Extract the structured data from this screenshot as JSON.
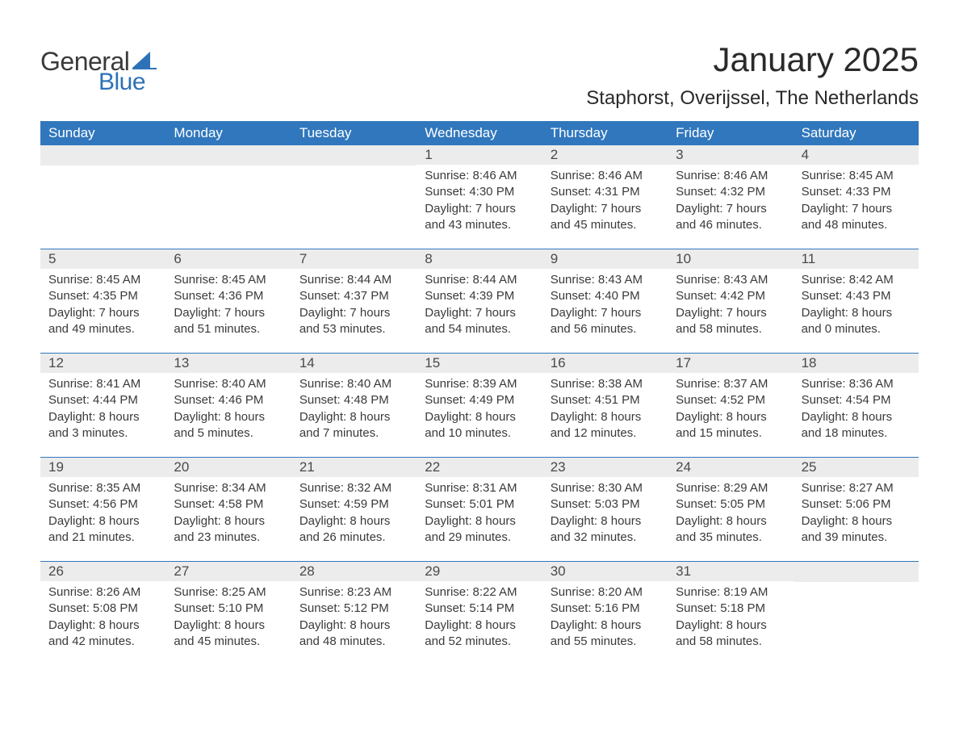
{
  "logo": {
    "general": "General",
    "blue": "Blue"
  },
  "title": "January 2025",
  "location": "Staphorst, Overijssel, The Netherlands",
  "colors": {
    "header_bg": "#3077bd",
    "header_text": "#ffffff",
    "daynum_bg": "#ececec",
    "text": "#3a3a3a",
    "rule": "#3077bd",
    "logo_blue": "#2d72b8",
    "background": "#ffffff"
  },
  "typography": {
    "title_fontsize": 42,
    "location_fontsize": 24,
    "header_fontsize": 17,
    "daynum_fontsize": 17,
    "body_fontsize": 15
  },
  "layout": {
    "columns": 7,
    "rows": 5
  },
  "day_names": [
    "Sunday",
    "Monday",
    "Tuesday",
    "Wednesday",
    "Thursday",
    "Friday",
    "Saturday"
  ],
  "labels": {
    "sunrise": "Sunrise:",
    "sunset": "Sunset:",
    "daylight": "Daylight:"
  },
  "weeks": [
    [
      {
        "day": "",
        "sunrise": "",
        "sunset": "",
        "daylight": ""
      },
      {
        "day": "",
        "sunrise": "",
        "sunset": "",
        "daylight": ""
      },
      {
        "day": "",
        "sunrise": "",
        "sunset": "",
        "daylight": ""
      },
      {
        "day": "1",
        "sunrise": "8:46 AM",
        "sunset": "4:30 PM",
        "daylight": "7 hours and 43 minutes."
      },
      {
        "day": "2",
        "sunrise": "8:46 AM",
        "sunset": "4:31 PM",
        "daylight": "7 hours and 45 minutes."
      },
      {
        "day": "3",
        "sunrise": "8:46 AM",
        "sunset": "4:32 PM",
        "daylight": "7 hours and 46 minutes."
      },
      {
        "day": "4",
        "sunrise": "8:45 AM",
        "sunset": "4:33 PM",
        "daylight": "7 hours and 48 minutes."
      }
    ],
    [
      {
        "day": "5",
        "sunrise": "8:45 AM",
        "sunset": "4:35 PM",
        "daylight": "7 hours and 49 minutes."
      },
      {
        "day": "6",
        "sunrise": "8:45 AM",
        "sunset": "4:36 PM",
        "daylight": "7 hours and 51 minutes."
      },
      {
        "day": "7",
        "sunrise": "8:44 AM",
        "sunset": "4:37 PM",
        "daylight": "7 hours and 53 minutes."
      },
      {
        "day": "8",
        "sunrise": "8:44 AM",
        "sunset": "4:39 PM",
        "daylight": "7 hours and 54 minutes."
      },
      {
        "day": "9",
        "sunrise": "8:43 AM",
        "sunset": "4:40 PM",
        "daylight": "7 hours and 56 minutes."
      },
      {
        "day": "10",
        "sunrise": "8:43 AM",
        "sunset": "4:42 PM",
        "daylight": "7 hours and 58 minutes."
      },
      {
        "day": "11",
        "sunrise": "8:42 AM",
        "sunset": "4:43 PM",
        "daylight": "8 hours and 0 minutes."
      }
    ],
    [
      {
        "day": "12",
        "sunrise": "8:41 AM",
        "sunset": "4:44 PM",
        "daylight": "8 hours and 3 minutes."
      },
      {
        "day": "13",
        "sunrise": "8:40 AM",
        "sunset": "4:46 PM",
        "daylight": "8 hours and 5 minutes."
      },
      {
        "day": "14",
        "sunrise": "8:40 AM",
        "sunset": "4:48 PM",
        "daylight": "8 hours and 7 minutes."
      },
      {
        "day": "15",
        "sunrise": "8:39 AM",
        "sunset": "4:49 PM",
        "daylight": "8 hours and 10 minutes."
      },
      {
        "day": "16",
        "sunrise": "8:38 AM",
        "sunset": "4:51 PM",
        "daylight": "8 hours and 12 minutes."
      },
      {
        "day": "17",
        "sunrise": "8:37 AM",
        "sunset": "4:52 PM",
        "daylight": "8 hours and 15 minutes."
      },
      {
        "day": "18",
        "sunrise": "8:36 AM",
        "sunset": "4:54 PM",
        "daylight": "8 hours and 18 minutes."
      }
    ],
    [
      {
        "day": "19",
        "sunrise": "8:35 AM",
        "sunset": "4:56 PM",
        "daylight": "8 hours and 21 minutes."
      },
      {
        "day": "20",
        "sunrise": "8:34 AM",
        "sunset": "4:58 PM",
        "daylight": "8 hours and 23 minutes."
      },
      {
        "day": "21",
        "sunrise": "8:32 AM",
        "sunset": "4:59 PM",
        "daylight": "8 hours and 26 minutes."
      },
      {
        "day": "22",
        "sunrise": "8:31 AM",
        "sunset": "5:01 PM",
        "daylight": "8 hours and 29 minutes."
      },
      {
        "day": "23",
        "sunrise": "8:30 AM",
        "sunset": "5:03 PM",
        "daylight": "8 hours and 32 minutes."
      },
      {
        "day": "24",
        "sunrise": "8:29 AM",
        "sunset": "5:05 PM",
        "daylight": "8 hours and 35 minutes."
      },
      {
        "day": "25",
        "sunrise": "8:27 AM",
        "sunset": "5:06 PM",
        "daylight": "8 hours and 39 minutes."
      }
    ],
    [
      {
        "day": "26",
        "sunrise": "8:26 AM",
        "sunset": "5:08 PM",
        "daylight": "8 hours and 42 minutes."
      },
      {
        "day": "27",
        "sunrise": "8:25 AM",
        "sunset": "5:10 PM",
        "daylight": "8 hours and 45 minutes."
      },
      {
        "day": "28",
        "sunrise": "8:23 AM",
        "sunset": "5:12 PM",
        "daylight": "8 hours and 48 minutes."
      },
      {
        "day": "29",
        "sunrise": "8:22 AM",
        "sunset": "5:14 PM",
        "daylight": "8 hours and 52 minutes."
      },
      {
        "day": "30",
        "sunrise": "8:20 AM",
        "sunset": "5:16 PM",
        "daylight": "8 hours and 55 minutes."
      },
      {
        "day": "31",
        "sunrise": "8:19 AM",
        "sunset": "5:18 PM",
        "daylight": "8 hours and 58 minutes."
      },
      {
        "day": "",
        "sunrise": "",
        "sunset": "",
        "daylight": ""
      }
    ]
  ]
}
